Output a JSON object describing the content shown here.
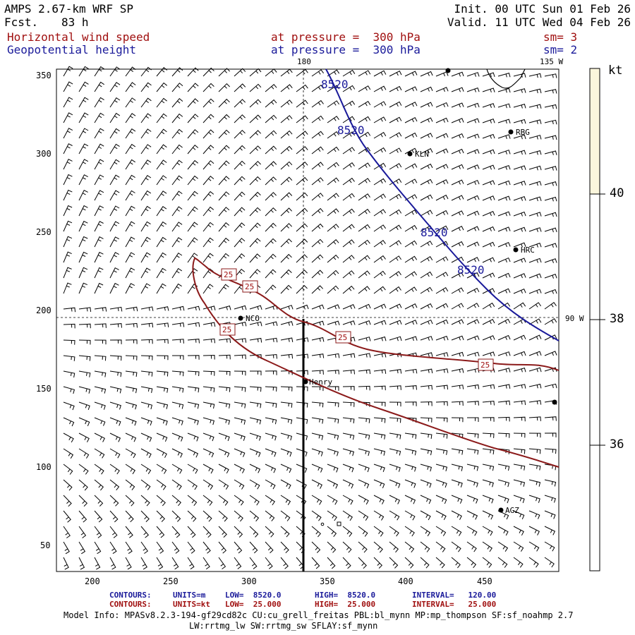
{
  "header": {
    "model": "AMPS 2.67-km WRF SP",
    "fcst_label": "Fcst.",
    "fcst_value": "83 h",
    "init": "Init. 00 UTC Sun 01 Feb 26",
    "valid": "Valid. 11 UTC Wed 04 Feb 26"
  },
  "fields": [
    {
      "name": "Horizontal wind speed",
      "level": "at pressure =  300 hPa",
      "smooth": "sm= 3",
      "color": "#a01010"
    },
    {
      "name": "Geopotential height",
      "level": "at pressure =  300 hPa",
      "smooth": "sm= 2",
      "color": "#1a1a9a"
    }
  ],
  "map": {
    "x_ticks": [
      "200",
      "250",
      "300",
      "350",
      "400",
      "450"
    ],
    "y_ticks": [
      "350",
      "300",
      "250",
      "200",
      "150",
      "100",
      "50"
    ],
    "meridian_labels": [
      "180",
      "135 W",
      "90 W"
    ],
    "stations": [
      "KLN",
      "RBG",
      "HRC",
      "NCO",
      "Henry",
      "AGZ"
    ],
    "height_contour_label": "8520",
    "wind_contour_label": "25",
    "height_color": "#1a1a9a",
    "wind_color": "#8b1a1a"
  },
  "colorbar": {
    "unit": "kt",
    "labels": [
      "40",
      "38",
      "36"
    ],
    "fill_color": "#fbf6dc"
  },
  "footer": {
    "contours_height": {
      "label": "CONTOURS:",
      "units": "UNITS=m",
      "low": "LOW=  8520.0",
      "high": "HIGH=  8520.0",
      "interval": "INTERVAL=   120.00"
    },
    "contours_wind": {
      "label": "CONTOURS:",
      "units": "UNITS=kt",
      "low": "LOW=  25.000",
      "high": "HIGH=  25.000",
      "interval": "INTERVAL=   25.000"
    },
    "model_info_1": "Model Info: MPASv8.2.3-194-gf29cd82c CU:cu_grell_freitas PBL:bl_mynn MP:mp_thompson SF:sf_noahmp 2.7",
    "model_info_2": "LW:rrtmg_lw SW:rrtmg_sw SFLAY:sf_mynn"
  }
}
